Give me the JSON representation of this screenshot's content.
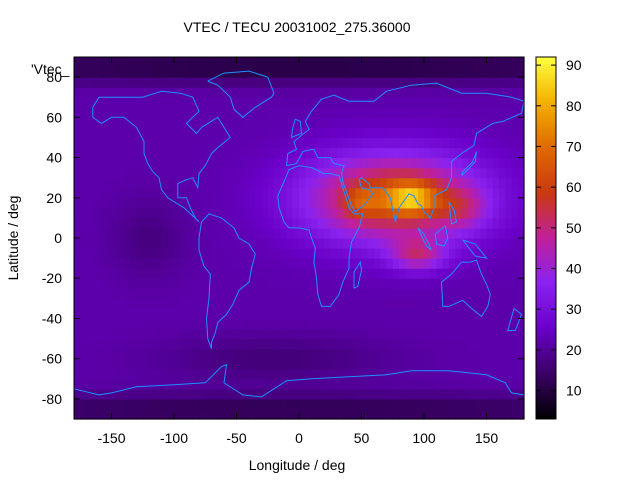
{
  "chart_data": {
    "type": "heatmap",
    "title": "VTEC / TECU 20031002_275.36000",
    "xlabel": "Longitude / deg",
    "ylabel": "Latitude / deg",
    "key_label": "'Vtec_",
    "xlim": [
      -180,
      180
    ],
    "ylim": [
      -90,
      90
    ],
    "x_ticks": [
      -150,
      -100,
      -50,
      0,
      50,
      100,
      150
    ],
    "y_ticks": [
      -80,
      -60,
      -40,
      -20,
      0,
      20,
      40,
      60,
      80
    ],
    "colorbar": {
      "range": [
        3,
        92
      ],
      "ticks": [
        10,
        20,
        30,
        40,
        50,
        60,
        70,
        80,
        90
      ],
      "palette": [
        "#000000",
        "#3a0066",
        "#6a00c8",
        "#8a22f0",
        "#c0209a",
        "#c83a10",
        "#e06a00",
        "#f3b000",
        "#ffff40"
      ]
    },
    "grid": false,
    "background_level": 22,
    "features": [
      {
        "lon": 75,
        "lat": 20,
        "level": 40,
        "sigma_lon": 70,
        "sigma_lat": 22
      },
      {
        "lon": 90,
        "lat": 20,
        "level": 28,
        "sigma_lon": 20,
        "sigma_lat": 8
      },
      {
        "lon": 95,
        "lat": -8,
        "level": 22,
        "sigma_lon": 22,
        "sigma_lat": 8
      },
      {
        "lon": 50,
        "lat": 18,
        "level": 12,
        "sigma_lon": 15,
        "sigma_lat": 8
      },
      {
        "lon": 130,
        "lat": 15,
        "level": 12,
        "sigma_lon": 20,
        "sigma_lat": 10
      },
      {
        "lon": -120,
        "lat": 0,
        "level": -5,
        "sigma_lon": 30,
        "sigma_lat": 20
      },
      {
        "lon": 0,
        "lat": 85,
        "level": -12,
        "sigma_lon": 400,
        "sigma_lat": 8
      },
      {
        "lon": 0,
        "lat": -85,
        "level": -10,
        "sigma_lon": 400,
        "sigma_lat": 8
      },
      {
        "lon": -20,
        "lat": -60,
        "level": -6,
        "sigma_lon": 90,
        "sigma_lat": 12
      }
    ],
    "coastlines": [
      [
        [
          -165,
          65
        ],
        [
          -160,
          70
        ],
        [
          -140,
          70
        ],
        [
          -125,
          70
        ],
        [
          -110,
          73
        ],
        [
          -95,
          72
        ],
        [
          -85,
          70
        ],
        [
          -80,
          63
        ],
        [
          -90,
          57
        ],
        [
          -82,
          52
        ],
        [
          -78,
          55
        ],
        [
          -65,
          60
        ],
        [
          -60,
          55
        ],
        [
          -55,
          50
        ],
        [
          -65,
          45
        ],
        [
          -70,
          42
        ],
        [
          -75,
          36
        ],
        [
          -80,
          32
        ],
        [
          -81,
          25
        ],
        [
          -85,
          30
        ],
        [
          -90,
          29
        ],
        [
          -97,
          27
        ],
        [
          -97,
          20
        ],
        [
          -90,
          20
        ],
        [
          -87,
          15
        ],
        [
          -83,
          10
        ],
        [
          -80,
          8
        ],
        [
          -85,
          11
        ],
        [
          -92,
          15
        ],
        [
          -105,
          20
        ],
        [
          -110,
          24
        ],
        [
          -112,
          30
        ],
        [
          -117,
          33
        ],
        [
          -121,
          37
        ],
        [
          -124,
          42
        ],
        [
          -124,
          48
        ],
        [
          -130,
          55
        ],
        [
          -140,
          60
        ],
        [
          -150,
          60
        ],
        [
          -158,
          57
        ],
        [
          -165,
          60
        ],
        [
          -165,
          65
        ]
      ],
      [
        [
          -78,
          8
        ],
        [
          -72,
          12
        ],
        [
          -62,
          10
        ],
        [
          -52,
          5
        ],
        [
          -48,
          0
        ],
        [
          -40,
          -3
        ],
        [
          -35,
          -8
        ],
        [
          -38,
          -15
        ],
        [
          -40,
          -22
        ],
        [
          -48,
          -26
        ],
        [
          -53,
          -33
        ],
        [
          -58,
          -38
        ],
        [
          -65,
          -42
        ],
        [
          -67,
          -47
        ],
        [
          -70,
          -52
        ],
        [
          -70,
          -55
        ],
        [
          -73,
          -50
        ],
        [
          -74,
          -40
        ],
        [
          -72,
          -30
        ],
        [
          -71,
          -18
        ],
        [
          -76,
          -14
        ],
        [
          -80,
          -6
        ],
        [
          -80,
          0
        ],
        [
          -78,
          8
        ]
      ],
      [
        [
          -73,
          78
        ],
        [
          -60,
          82
        ],
        [
          -40,
          83
        ],
        [
          -25,
          80
        ],
        [
          -20,
          72
        ],
        [
          -22,
          70
        ],
        [
          -35,
          65
        ],
        [
          -45,
          60
        ],
        [
          -52,
          64
        ],
        [
          -55,
          70
        ],
        [
          -65,
          76
        ],
        [
          -73,
          78
        ]
      ],
      [
        [
          -17,
          21
        ],
        [
          -16,
          15
        ],
        [
          -12,
          8
        ],
        [
          -8,
          5
        ],
        [
          0,
          5
        ],
        [
          8,
          4
        ],
        [
          10,
          0
        ],
        [
          13,
          -5
        ],
        [
          12,
          -12
        ],
        [
          14,
          -20
        ],
        [
          15,
          -28
        ],
        [
          18,
          -34
        ],
        [
          25,
          -34
        ],
        [
          32,
          -28
        ],
        [
          35,
          -22
        ],
        [
          40,
          -15
        ],
        [
          40,
          -10
        ],
        [
          42,
          -2
        ],
        [
          48,
          5
        ],
        [
          51,
          12
        ],
        [
          44,
          12
        ],
        [
          40,
          15
        ],
        [
          35,
          25
        ],
        [
          32,
          31
        ],
        [
          25,
          32
        ],
        [
          20,
          32
        ],
        [
          10,
          35
        ],
        [
          0,
          36
        ],
        [
          -8,
          34
        ],
        [
          -12,
          28
        ],
        [
          -17,
          21
        ]
      ],
      [
        [
          -10,
          36
        ],
        [
          -9,
          42
        ],
        [
          -2,
          44
        ],
        [
          -4,
          48
        ],
        [
          2,
          51
        ],
        [
          8,
          54
        ],
        [
          5,
          58
        ],
        [
          10,
          63
        ],
        [
          18,
          69
        ],
        [
          28,
          71
        ],
        [
          40,
          68
        ],
        [
          60,
          68
        ],
        [
          70,
          73
        ],
        [
          90,
          76
        ],
        [
          110,
          77
        ],
        [
          130,
          72
        ],
        [
          150,
          72
        ],
        [
          170,
          70
        ],
        [
          180,
          68
        ],
        [
          178,
          62
        ],
        [
          163,
          58
        ],
        [
          155,
          57
        ],
        [
          142,
          52
        ],
        [
          140,
          46
        ],
        [
          130,
          42
        ],
        [
          122,
          38
        ],
        [
          122,
          30
        ],
        [
          118,
          24
        ],
        [
          108,
          21
        ],
        [
          108,
          15
        ],
        [
          105,
          10
        ],
        [
          100,
          13
        ],
        [
          98,
          16
        ],
        [
          95,
          17
        ],
        [
          92,
          21
        ],
        [
          88,
          22
        ],
        [
          80,
          15
        ],
        [
          77,
          8
        ],
        [
          73,
          20
        ],
        [
          67,
          25
        ],
        [
          57,
          25
        ],
        [
          56,
          27
        ],
        [
          50,
          30
        ],
        [
          48,
          29
        ],
        [
          50,
          25
        ],
        [
          56,
          24
        ],
        [
          59,
          22
        ],
        [
          53,
          17
        ],
        [
          45,
          13
        ],
        [
          42,
          16
        ],
        [
          35,
          28
        ],
        [
          34,
          32
        ],
        [
          36,
          36
        ],
        [
          28,
          37
        ],
        [
          25,
          40
        ],
        [
          20,
          40
        ],
        [
          15,
          40
        ],
        [
          12,
          44
        ],
        [
          10,
          44
        ],
        [
          3,
          43
        ],
        [
          -2,
          37
        ],
        [
          -10,
          36
        ]
      ],
      [
        [
          44,
          -25
        ],
        [
          47,
          -24
        ],
        [
          50,
          -16
        ],
        [
          49,
          -12
        ],
        [
          44,
          -17
        ],
        [
          44,
          -25
        ]
      ],
      [
        [
          114,
          -22
        ],
        [
          122,
          -18
        ],
        [
          130,
          -12
        ],
        [
          137,
          -12
        ],
        [
          142,
          -11
        ],
        [
          146,
          -18
        ],
        [
          150,
          -23
        ],
        [
          153,
          -28
        ],
        [
          151,
          -34
        ],
        [
          146,
          -39
        ],
        [
          138,
          -35
        ],
        [
          131,
          -31
        ],
        [
          120,
          -34
        ],
        [
          115,
          -34
        ],
        [
          114,
          -22
        ]
      ],
      [
        [
          95,
          5
        ],
        [
          100,
          2
        ],
        [
          106,
          -6
        ],
        [
          102,
          -4
        ],
        [
          95,
          5
        ]
      ],
      [
        [
          109,
          2
        ],
        [
          117,
          6
        ],
        [
          119,
          0
        ],
        [
          116,
          -4
        ],
        [
          110,
          -3
        ],
        [
          109,
          2
        ]
      ],
      [
        [
          131,
          -1
        ],
        [
          141,
          -3
        ],
        [
          150,
          -10
        ],
        [
          141,
          -9
        ],
        [
          131,
          -1
        ]
      ],
      [
        [
          130,
          31
        ],
        [
          135,
          34
        ],
        [
          141,
          38
        ],
        [
          142,
          43
        ],
        [
          139,
          38
        ],
        [
          131,
          33
        ],
        [
          130,
          31
        ]
      ],
      [
        [
          172,
          -35
        ],
        [
          178,
          -38
        ],
        [
          173,
          -46
        ],
        [
          167,
          -46
        ],
        [
          172,
          -35
        ]
      ],
      [
        [
          -180,
          -75
        ],
        [
          -160,
          -78
        ],
        [
          -150,
          -77
        ],
        [
          -130,
          -74
        ],
        [
          -100,
          -73
        ],
        [
          -75,
          -72
        ],
        [
          -62,
          -64
        ],
        [
          -58,
          -63
        ],
        [
          -60,
          -72
        ],
        [
          -45,
          -78
        ],
        [
          -30,
          -79
        ],
        [
          -10,
          -71
        ],
        [
          10,
          -70
        ],
        [
          40,
          -69
        ],
        [
          70,
          -68
        ],
        [
          90,
          -66
        ],
        [
          120,
          -66
        ],
        [
          150,
          -68
        ],
        [
          165,
          -72
        ],
        [
          170,
          -77
        ],
        [
          180,
          -78
        ]
      ],
      [
        [
          -6,
          50
        ],
        [
          -5,
          55
        ],
        [
          -3,
          59
        ],
        [
          1,
          58
        ],
        [
          2,
          52
        ],
        [
          -6,
          50
        ]
      ],
      [
        [
          120,
          18
        ],
        [
          124,
          14
        ],
        [
          126,
          8
        ],
        [
          122,
          7
        ],
        [
          120,
          18
        ]
      ]
    ]
  }
}
